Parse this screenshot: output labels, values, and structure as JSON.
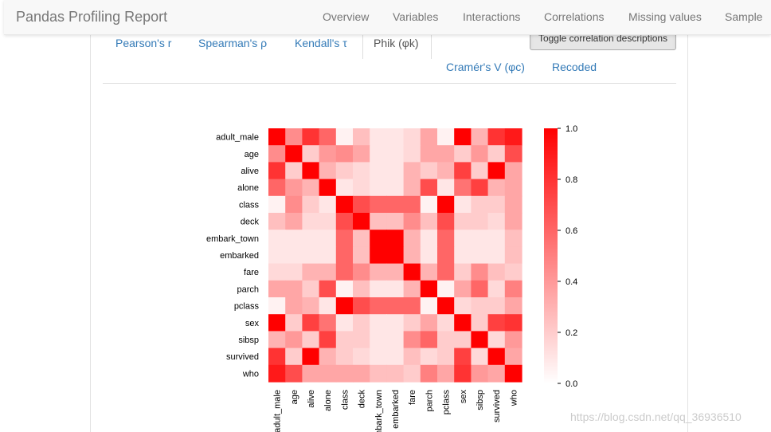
{
  "navbar": {
    "brand": "Pandas Profiling Report",
    "items": [
      "Overview",
      "Variables",
      "Interactions",
      "Correlations",
      "Missing values",
      "Sample"
    ]
  },
  "tabs": {
    "items": [
      "Pearson's r",
      "Spearman's ρ",
      "Kendall's τ",
      "Phik (φk)",
      "Cramér's V (φc)",
      "Recoded"
    ],
    "active": "Phik (φk)",
    "toggle_label": "Toggle correlation descriptions"
  },
  "chart_data": {
    "type": "heatmap",
    "labels": [
      "adult_male",
      "age",
      "alive",
      "alone",
      "class",
      "deck",
      "embark_town",
      "embarked",
      "fare",
      "parch",
      "pclass",
      "sex",
      "sibsp",
      "survived",
      "who"
    ],
    "values": [
      [
        1.0,
        0.45,
        0.8,
        0.6,
        0.05,
        0.25,
        0.1,
        0.1,
        0.15,
        0.35,
        0.05,
        1.0,
        0.3,
        0.8,
        0.9
      ],
      [
        0.45,
        1.0,
        0.2,
        0.4,
        0.45,
        0.35,
        0.1,
        0.1,
        0.15,
        0.35,
        0.35,
        0.2,
        0.4,
        0.2,
        0.7
      ],
      [
        0.8,
        0.2,
        1.0,
        0.3,
        0.2,
        0.15,
        0.1,
        0.1,
        0.3,
        0.2,
        0.3,
        0.75,
        0.2,
        1.0,
        0.35
      ],
      [
        0.6,
        0.4,
        0.3,
        1.0,
        0.1,
        0.15,
        0.1,
        0.1,
        0.3,
        0.7,
        0.1,
        0.55,
        0.75,
        0.3,
        0.35
      ],
      [
        0.05,
        0.45,
        0.2,
        0.1,
        1.0,
        0.7,
        0.6,
        0.6,
        0.6,
        0.05,
        1.0,
        0.1,
        0.2,
        0.2,
        0.35
      ],
      [
        0.25,
        0.35,
        0.15,
        0.15,
        0.7,
        1.0,
        0.25,
        0.25,
        0.45,
        0.25,
        0.7,
        0.2,
        0.2,
        0.15,
        0.35
      ],
      [
        0.1,
        0.1,
        0.1,
        0.1,
        0.6,
        0.25,
        1.0,
        1.0,
        0.3,
        0.1,
        0.6,
        0.1,
        0.1,
        0.1,
        0.25
      ],
      [
        0.1,
        0.1,
        0.1,
        0.1,
        0.6,
        0.25,
        1.0,
        1.0,
        0.3,
        0.1,
        0.6,
        0.1,
        0.1,
        0.1,
        0.25
      ],
      [
        0.15,
        0.15,
        0.3,
        0.3,
        0.6,
        0.45,
        0.3,
        0.3,
        1.0,
        0.3,
        0.6,
        0.2,
        0.45,
        0.25,
        0.2
      ],
      [
        0.35,
        0.35,
        0.2,
        0.7,
        0.05,
        0.25,
        0.1,
        0.1,
        0.3,
        1.0,
        0.05,
        0.35,
        0.6,
        0.15,
        0.5
      ],
      [
        0.05,
        0.35,
        0.3,
        0.1,
        1.0,
        0.7,
        0.6,
        0.6,
        0.6,
        0.05,
        1.0,
        0.15,
        0.2,
        0.2,
        0.35
      ],
      [
        1.0,
        0.2,
        0.75,
        0.55,
        0.1,
        0.2,
        0.1,
        0.1,
        0.2,
        0.35,
        0.15,
        1.0,
        0.2,
        0.75,
        0.8
      ],
      [
        0.3,
        0.4,
        0.2,
        0.75,
        0.2,
        0.2,
        0.1,
        0.1,
        0.45,
        0.6,
        0.2,
        0.2,
        1.0,
        0.15,
        0.4
      ],
      [
        0.8,
        0.2,
        1.0,
        0.3,
        0.2,
        0.15,
        0.1,
        0.1,
        0.25,
        0.15,
        0.2,
        0.75,
        0.15,
        1.0,
        0.35
      ],
      [
        0.9,
        0.7,
        0.35,
        0.35,
        0.35,
        0.35,
        0.25,
        0.25,
        0.2,
        0.5,
        0.35,
        0.8,
        0.4,
        0.35,
        1.0
      ]
    ],
    "vmin": 0.0,
    "vmax": 1.0,
    "colorbar_ticks": [
      "0.0",
      "0.2",
      "0.4",
      "0.6",
      "0.8",
      "1.0"
    ],
    "colormap": [
      "#ffffff",
      "#ff0000"
    ]
  },
  "watermark": "https://blog.csdn.net/qq_36936510"
}
